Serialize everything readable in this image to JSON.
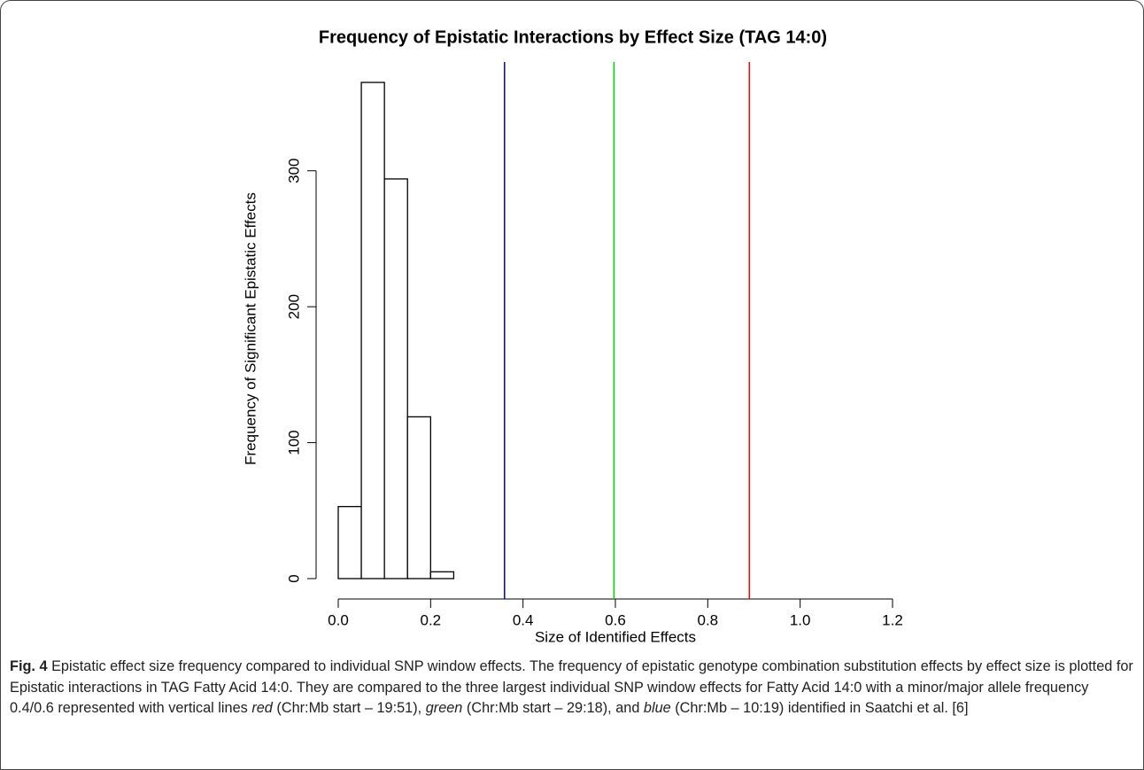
{
  "chart_data": {
    "type": "histogram",
    "title": "Frequency of Epistatic Interactions by Effect Size (TAG 14:0)",
    "x_label": "Size of Identified Effects",
    "y_label": "Frequency of Significant Epistatic Effects",
    "bins": [
      0,
      0.05,
      0.1,
      0.15,
      0.2,
      0.25
    ],
    "values": [
      53,
      365,
      294,
      119,
      5
    ],
    "color": "#ffffff",
    "edge_color": "#000000",
    "xlim": [
      0,
      1.2
    ],
    "xticks": [
      {
        "value": 0,
        "label": "0.0"
      },
      0.2,
      0.4,
      0.6,
      0.8,
      {
        "value": 1,
        "label": "1.0"
      },
      1.2
    ],
    "ylim": [
      -15,
      380
    ],
    "yticks": [
      0,
      100,
      200,
      300
    ],
    "vlines": [
      {
        "value": 0.36,
        "color": "#0000cc"
      },
      {
        "value": 0.597,
        "color": "#00cc00"
      },
      {
        "value": 0.89,
        "color": "#ff0000"
      }
    ]
  },
  "caption": {
    "label": "Fig. 4",
    "parts": [
      "Epistatic effect size frequency compared to individual SNP window effects. The frequency of epistatic genotype combination substitution effects by effect size is plotted for Epistatic interactions in TAG Fatty Acid 14:0. They are compared to the three largest individual SNP window effects for Fatty Acid 14:0 with a minor/major allele frequency 0.4/0.6 represented with vertical lines",
      "red",
      "(Chr:Mb start – 19:51),",
      "green",
      "(Chr:Mb start – 29:18), and",
      "blue",
      "(Chr:Mb – 10:19) identified in Saatchi et al. [6]"
    ]
  }
}
